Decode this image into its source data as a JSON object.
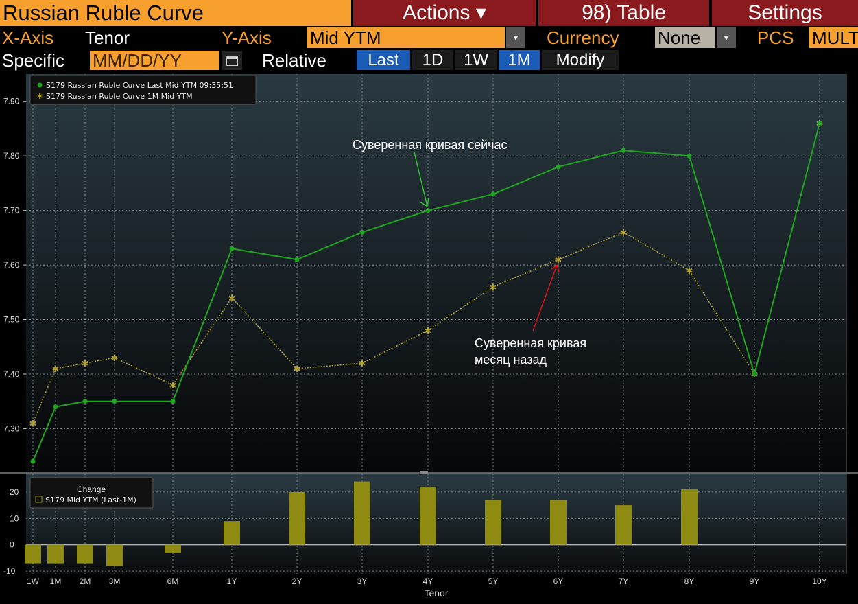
{
  "header": {
    "title": "Russian Ruble Curve",
    "actions_label": "Actions ▾",
    "table_label": "98) Table",
    "settings_label": "Settings"
  },
  "axes_bar": {
    "x_axis_label": "X-Axis",
    "x_axis_value": "Tenor",
    "y_axis_label": "Y-Axis",
    "y_axis_value": "Mid YTM",
    "currency_label": "Currency",
    "currency_value": "None",
    "pcs_label": "PCS",
    "pcs_value": "MULT"
  },
  "date_bar": {
    "specific_label": "Specific",
    "date_placeholder": "MM/DD/YY",
    "relative_label": "Relative",
    "tabs": [
      "Last",
      "1D",
      "1W",
      "1M",
      "Modify"
    ]
  },
  "colors": {
    "accent_orange": "#f7a02e",
    "menu_red": "#8b1a1f",
    "tab_blue": "#1a5bb5",
    "series_last": "#1fa51f",
    "series_1m": "#b0a032",
    "bar_fill": "#8f8a12"
  },
  "chart_data": [
    {
      "type": "line",
      "x": [
        "1W",
        "1M",
        "2M",
        "3M",
        "6M",
        "1Y",
        "2Y",
        "3Y",
        "4Y",
        "5Y",
        "6Y",
        "7Y",
        "8Y",
        "9Y",
        "10Y"
      ],
      "series": [
        {
          "name": "S179 Russian Ruble Curve Last Mid YTM 09:35:51",
          "values": [
            7.24,
            7.34,
            7.35,
            7.35,
            7.35,
            7.63,
            7.61,
            7.66,
            7.7,
            7.73,
            7.78,
            7.81,
            7.8,
            7.4,
            7.86
          ]
        },
        {
          "name": "S179 Russian Ruble Curve 1M Mid YTM",
          "values": [
            7.31,
            7.41,
            7.42,
            7.43,
            7.38,
            7.54,
            7.41,
            7.42,
            7.48,
            7.56,
            7.61,
            7.66,
            7.59,
            7.4,
            7.86
          ]
        }
      ],
      "yticks": [
        "7.30",
        "7.40",
        "7.50",
        "7.60",
        "7.70",
        "7.80",
        "7.90"
      ],
      "ylim": [
        7.22,
        7.95
      ],
      "grid": true,
      "legend": "top-left",
      "annotations": [
        {
          "text": "Суверенная кривая сейчас",
          "target_x": "4Y",
          "target_series": 0
        },
        {
          "text_lines": [
            "Суверенная кривая",
            "месяц назад"
          ],
          "target_x": "6Y",
          "target_series": 1
        }
      ]
    },
    {
      "type": "bar",
      "title": "Change",
      "categories": [
        "1W",
        "1M",
        "2M",
        "3M",
        "6M",
        "1Y",
        "2Y",
        "3Y",
        "4Y",
        "5Y",
        "6Y",
        "7Y",
        "8Y",
        "9Y",
        "10Y"
      ],
      "series": [
        {
          "name": "S179 Mid YTM (Last-1M)",
          "values": [
            -7,
            -7,
            -7,
            -8,
            -3,
            9,
            20,
            24,
            22,
            17,
            17,
            15,
            21,
            0,
            0
          ]
        }
      ],
      "yticks": [
        "-10",
        "0",
        "10",
        "20"
      ],
      "ylim": [
        -11,
        27
      ],
      "xlabel": "Tenor",
      "grid": true,
      "legend": "top-left"
    }
  ]
}
